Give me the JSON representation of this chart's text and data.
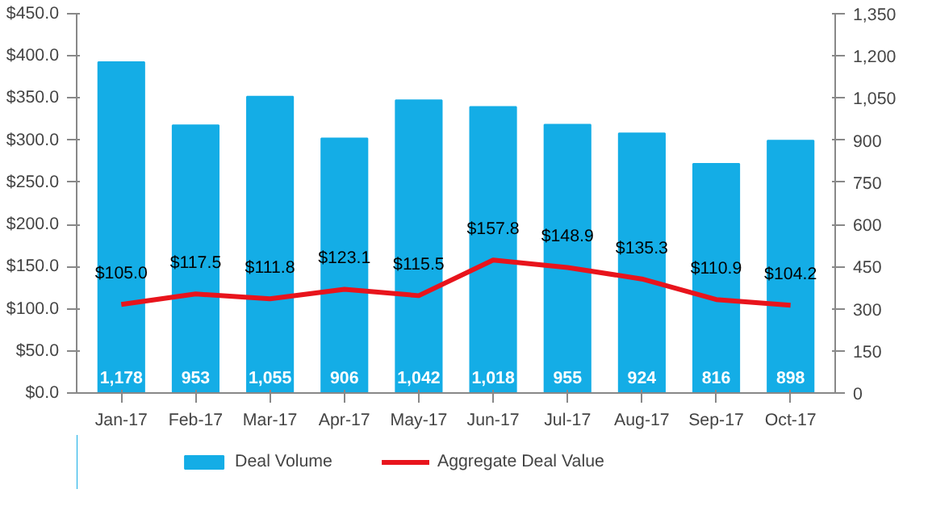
{
  "chart_data": {
    "type": "bar",
    "categories": [
      "Jan-17",
      "Feb-17",
      "Mar-17",
      "Apr-17",
      "May-17",
      "Jun-17",
      "Jul-17",
      "Aug-17",
      "Sep-17",
      "Oct-17"
    ],
    "series": [
      {
        "name": "Deal Volume",
        "axis": "y2",
        "color": "#14ade6",
        "values": [
          1178,
          953,
          1055,
          906,
          1042,
          1018,
          955,
          924,
          816,
          898
        ],
        "value_labels": [
          "1,178",
          "953",
          "1,055",
          "906",
          "1,042",
          "1,018",
          "955",
          "924",
          "816",
          "898"
        ]
      },
      {
        "name": "Aggregate Deal Value",
        "type": "line",
        "color": "#e8141c",
        "values": [
          105.0,
          117.5,
          111.8,
          123.1,
          115.5,
          157.8,
          148.9,
          135.3,
          110.9,
          104.2
        ],
        "value_labels": [
          "$105.0",
          "$117.5",
          "$111.8",
          "$123.1",
          "$115.5",
          "$157.8",
          "$148.9",
          "$135.3",
          "$110.9",
          "$104.2"
        ]
      }
    ],
    "ylim": [
      0,
      450
    ],
    "yticks": [
      {
        "value": 0,
        "label": "$0.0"
      },
      {
        "value": 50,
        "label": "$50.0"
      },
      {
        "value": 100,
        "label": "$100.0"
      },
      {
        "value": 150,
        "label": "$150.0"
      },
      {
        "value": 200,
        "label": "$200.0"
      },
      {
        "value": 250,
        "label": "$250.0"
      },
      {
        "value": 300,
        "label": "$300.0"
      },
      {
        "value": 350,
        "label": "$350.0"
      },
      {
        "value": 400,
        "label": "$400.0"
      },
      {
        "value": 450,
        "label": "$450.0"
      }
    ],
    "y2lim": [
      0,
      1350
    ],
    "y2ticks": [
      0,
      150,
      300,
      450,
      600,
      750,
      900,
      {
        "value": 1050,
        "label": "1,050"
      },
      {
        "value": 1200,
        "label": "1,200"
      },
      {
        "value": 1350,
        "label": "1,350"
      }
    ],
    "legend": "bottom",
    "grid": false,
    "marker": "none"
  }
}
